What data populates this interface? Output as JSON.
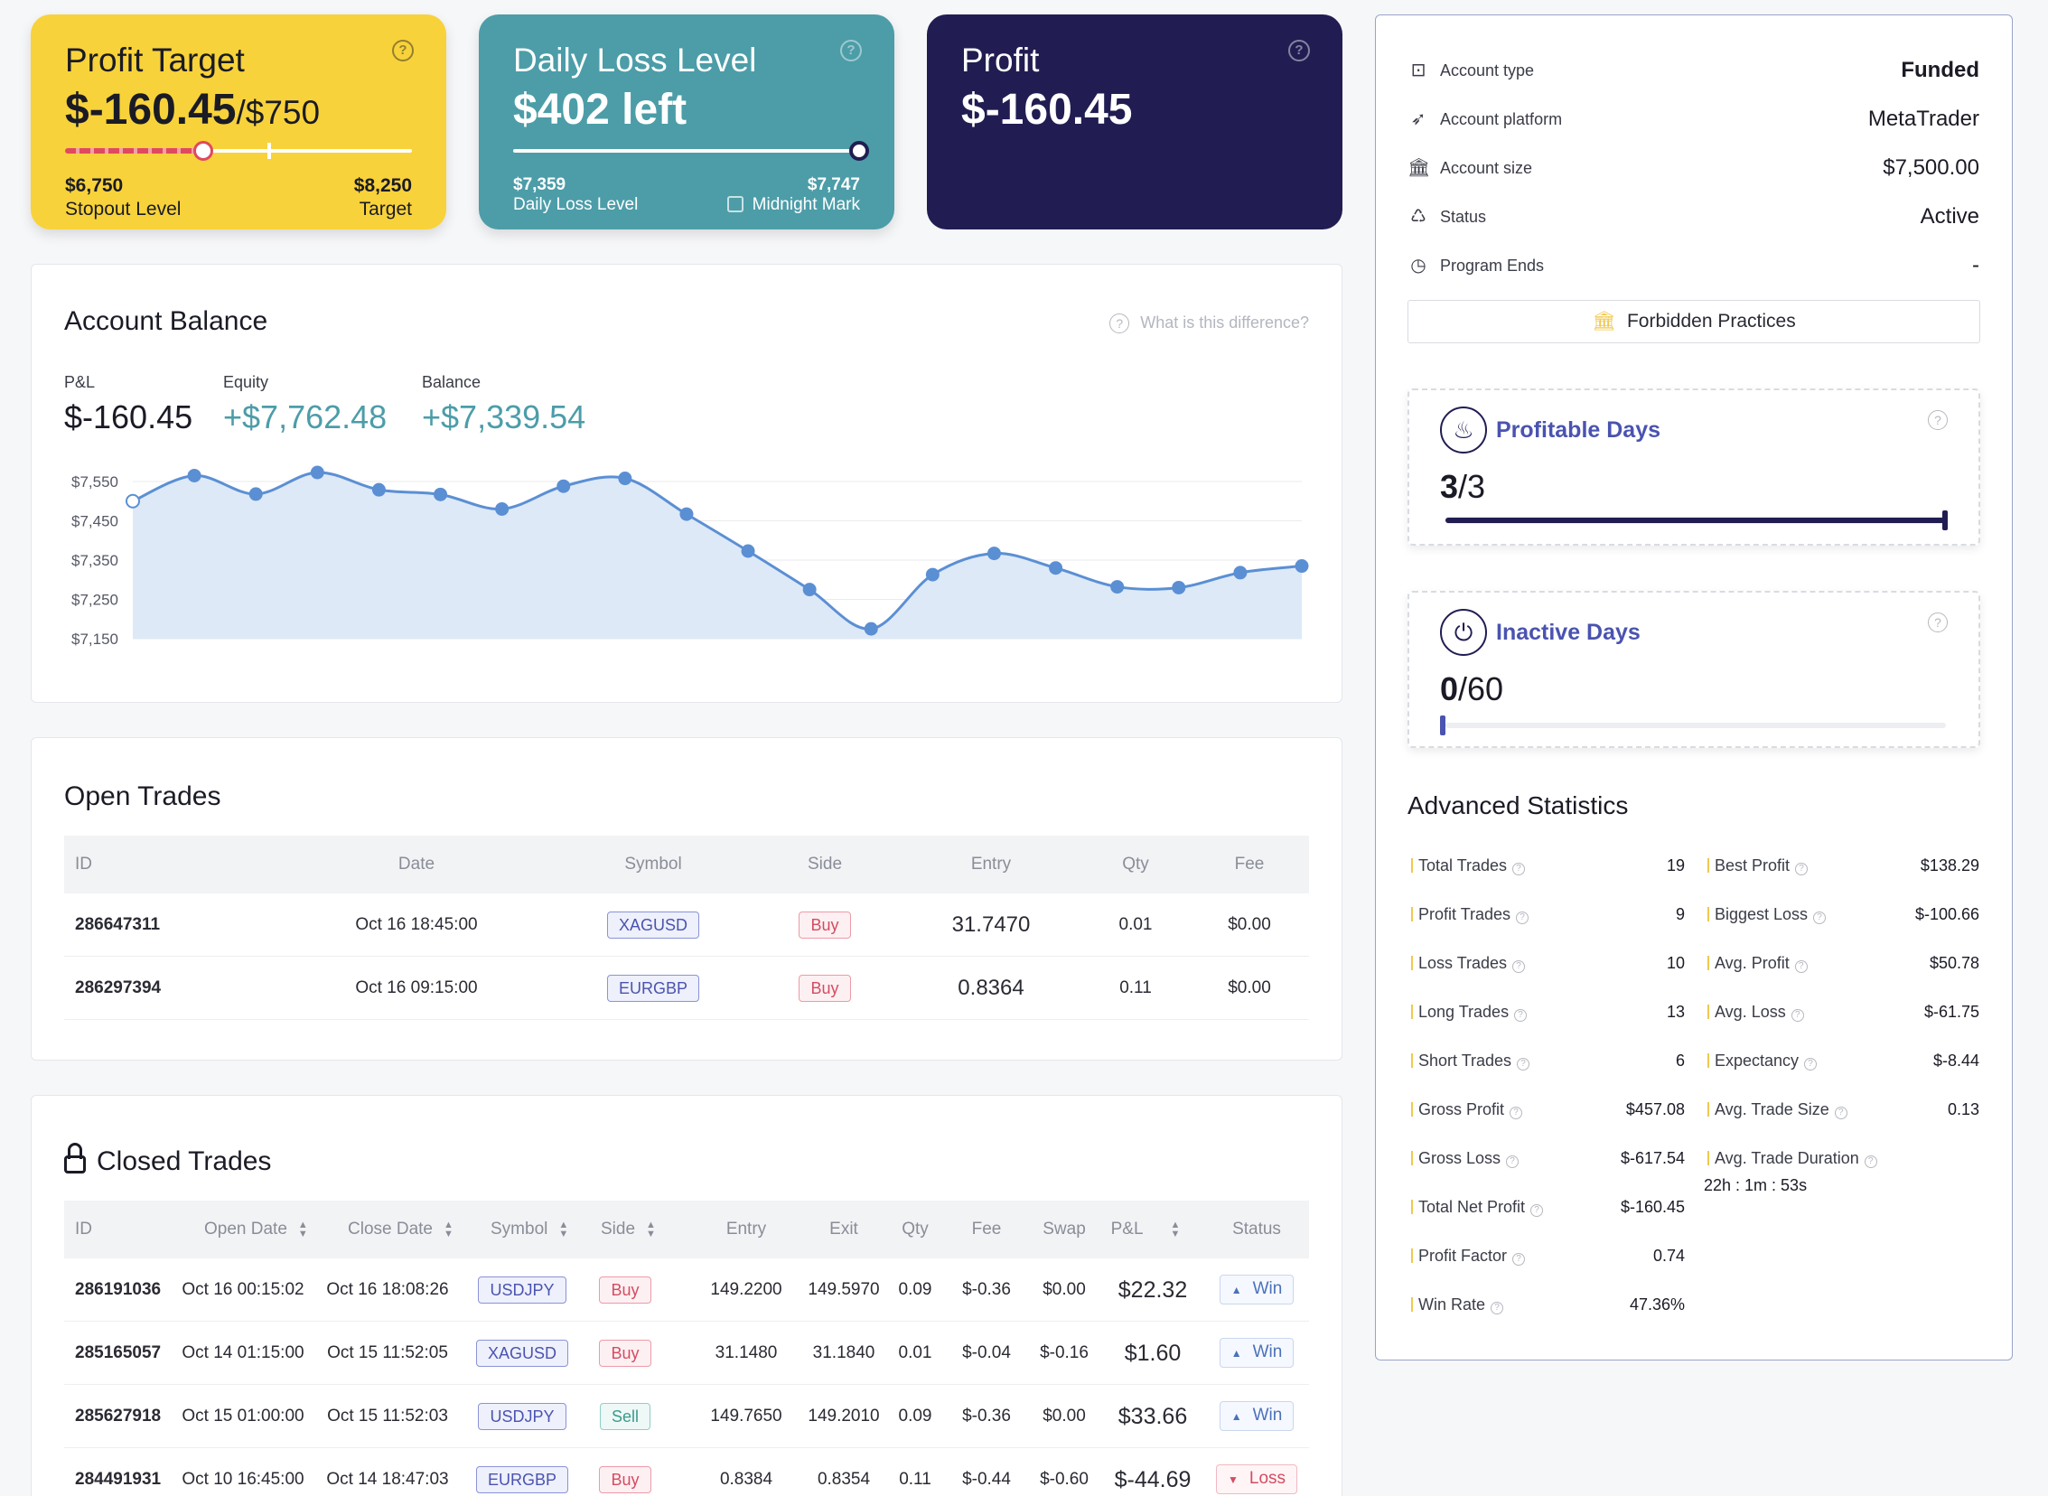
{
  "profit_target": {
    "title": "Profit Target",
    "value": "$-160.45",
    "target_suffix": "/$750",
    "progress_fraction": 0.41,
    "left_value": "$6,750",
    "left_label": "Stopout Level",
    "right_value": "$8,250",
    "right_label": "Target",
    "colors": {
      "bg": "#f8d23a",
      "bar_loss": "#e0495f"
    }
  },
  "daily_loss": {
    "title": "Daily Loss Level",
    "value": "$402 left",
    "left_value": "$7,359",
    "left_label": "Daily Loss Level",
    "right_value": "$7,747",
    "right_label": "Midnight Mark",
    "progress_fraction": 1.0,
    "colors": {
      "bg": "#4c9da8"
    }
  },
  "profit": {
    "title": "Profit",
    "value": "$-160.45",
    "colors": {
      "bg": "#211d52"
    }
  },
  "account_balance": {
    "title": "Account Balance",
    "help_text": "What is this difference?",
    "pnl_label": "P&L",
    "pnl_value": "$-160.45",
    "equity_label": "Equity",
    "equity_value": "+$7,762.48",
    "balance_label": "Balance",
    "balance_value": "+$7,339.54"
  },
  "chart_data": {
    "type": "area",
    "title": "",
    "xlabel": "",
    "ylabel": "",
    "ylim": [
      7150,
      7550
    ],
    "yticks": [
      7550,
      7450,
      7350,
      7250,
      7150
    ],
    "ytick_labels": [
      "$7,550",
      "$7,450",
      "$7,350",
      "$7,250",
      "$7,150"
    ],
    "grid": true,
    "x": [
      0,
      1,
      2,
      3,
      4,
      5,
      6,
      7,
      8,
      9,
      10,
      11,
      12,
      13,
      14,
      15,
      16,
      17,
      18,
      19
    ],
    "values": [
      7500,
      7565,
      7518,
      7573,
      7529,
      7517,
      7480,
      7538,
      7558,
      7467,
      7373,
      7275,
      7175,
      7313,
      7367,
      7330,
      7282,
      7280,
      7318,
      7335
    ],
    "color": "#5b8fd4",
    "fill": "#dde9f6"
  },
  "open_trades": {
    "title": "Open Trades",
    "columns": [
      "ID",
      "Date",
      "Symbol",
      "Side",
      "Entry",
      "Qty",
      "Fee"
    ],
    "rows": [
      {
        "id": "286647311",
        "date": "Oct 16 18:45:00",
        "symbol": "XAGUSD",
        "side": "Buy",
        "entry": "31.7470",
        "qty": "0.01",
        "fee": "$0.00"
      },
      {
        "id": "286297394",
        "date": "Oct 16 09:15:00",
        "symbol": "EURGBP",
        "side": "Buy",
        "entry": "0.8364",
        "qty": "0.11",
        "fee": "$0.00"
      }
    ]
  },
  "closed_trades": {
    "title": "Closed Trades",
    "columns": [
      "ID",
      "Open Date",
      "Close Date",
      "Symbol",
      "Side",
      "Entry",
      "Exit",
      "Qty",
      "Fee",
      "Swap",
      "P&L",
      "Status"
    ],
    "rows": [
      {
        "id": "286191036",
        "open": "Oct 16 00:15:02",
        "close": "Oct 16 18:08:26",
        "symbol": "USDJPY",
        "side": "Buy",
        "entry": "149.2200",
        "exit": "149.5970",
        "qty": "0.09",
        "fee": "$-0.36",
        "swap": "$0.00",
        "pnl": "$22.32",
        "status": "Win"
      },
      {
        "id": "285165057",
        "open": "Oct 14 01:15:00",
        "close": "Oct 15 11:52:05",
        "symbol": "XAGUSD",
        "side": "Buy",
        "entry": "31.1480",
        "exit": "31.1840",
        "qty": "0.01",
        "fee": "$-0.04",
        "swap": "$-0.16",
        "pnl": "$1.60",
        "status": "Win"
      },
      {
        "id": "285627918",
        "open": "Oct 15 01:00:00",
        "close": "Oct 15 11:52:03",
        "symbol": "USDJPY",
        "side": "Sell",
        "entry": "149.7650",
        "exit": "149.2010",
        "qty": "0.09",
        "fee": "$-0.36",
        "swap": "$0.00",
        "pnl": "$33.66",
        "status": "Win"
      },
      {
        "id": "284491931",
        "open": "Oct 10 16:45:00",
        "close": "Oct 14 18:47:03",
        "symbol": "EURGBP",
        "side": "Buy",
        "entry": "0.8384",
        "exit": "0.8354",
        "qty": "0.11",
        "fee": "$-0.44",
        "swap": "$-0.60",
        "pnl": "$-44.69",
        "status": "Loss"
      }
    ]
  },
  "account_info": {
    "items": [
      {
        "icon": "account-type-icon",
        "label": "Account type",
        "value": "Funded"
      },
      {
        "icon": "rocket-icon",
        "label": "Account platform",
        "value": "MetaTrader"
      },
      {
        "icon": "bank-icon",
        "label": "Account size",
        "value": "$7,500.00"
      },
      {
        "icon": "recycle-icon",
        "label": "Status",
        "value": "Active"
      },
      {
        "icon": "clock-icon",
        "label": "Program Ends",
        "value": "-"
      }
    ],
    "forbidden_label": "Forbidden Practices"
  },
  "profitable_days": {
    "title": "Profitable Days",
    "current": "3",
    "total": "/3",
    "fraction": 1.0
  },
  "inactive_days": {
    "title": "Inactive Days",
    "current": "0",
    "total": "/60",
    "fraction": 0.0
  },
  "advanced_statistics": {
    "title": "Advanced Statistics",
    "left": [
      {
        "label": "Total Trades",
        "value": "19"
      },
      {
        "label": "Profit Trades",
        "value": "9"
      },
      {
        "label": "Loss Trades",
        "value": "10"
      },
      {
        "label": "Long Trades",
        "value": "13"
      },
      {
        "label": "Short Trades",
        "value": "6"
      },
      {
        "label": "Gross Profit",
        "value": "$457.08"
      },
      {
        "label": "Gross Loss",
        "value": "$-617.54"
      },
      {
        "label": "Total Net Profit",
        "value": "$-160.45"
      },
      {
        "label": "Profit Factor",
        "value": "0.74"
      },
      {
        "label": "Win Rate",
        "value": "47.36%"
      }
    ],
    "right": [
      {
        "label": "Best Profit",
        "value": "$138.29"
      },
      {
        "label": "Biggest Loss",
        "value": "$-100.66"
      },
      {
        "label": "Avg. Profit",
        "value": "$50.78"
      },
      {
        "label": "Avg. Loss",
        "value": "$-61.75"
      },
      {
        "label": "Expectancy",
        "value": "$-8.44"
      },
      {
        "label": "Avg. Trade Size",
        "value": "0.13"
      },
      {
        "label": "Avg. Trade Duration",
        "value": "22h : 1m : 53s"
      }
    ]
  }
}
